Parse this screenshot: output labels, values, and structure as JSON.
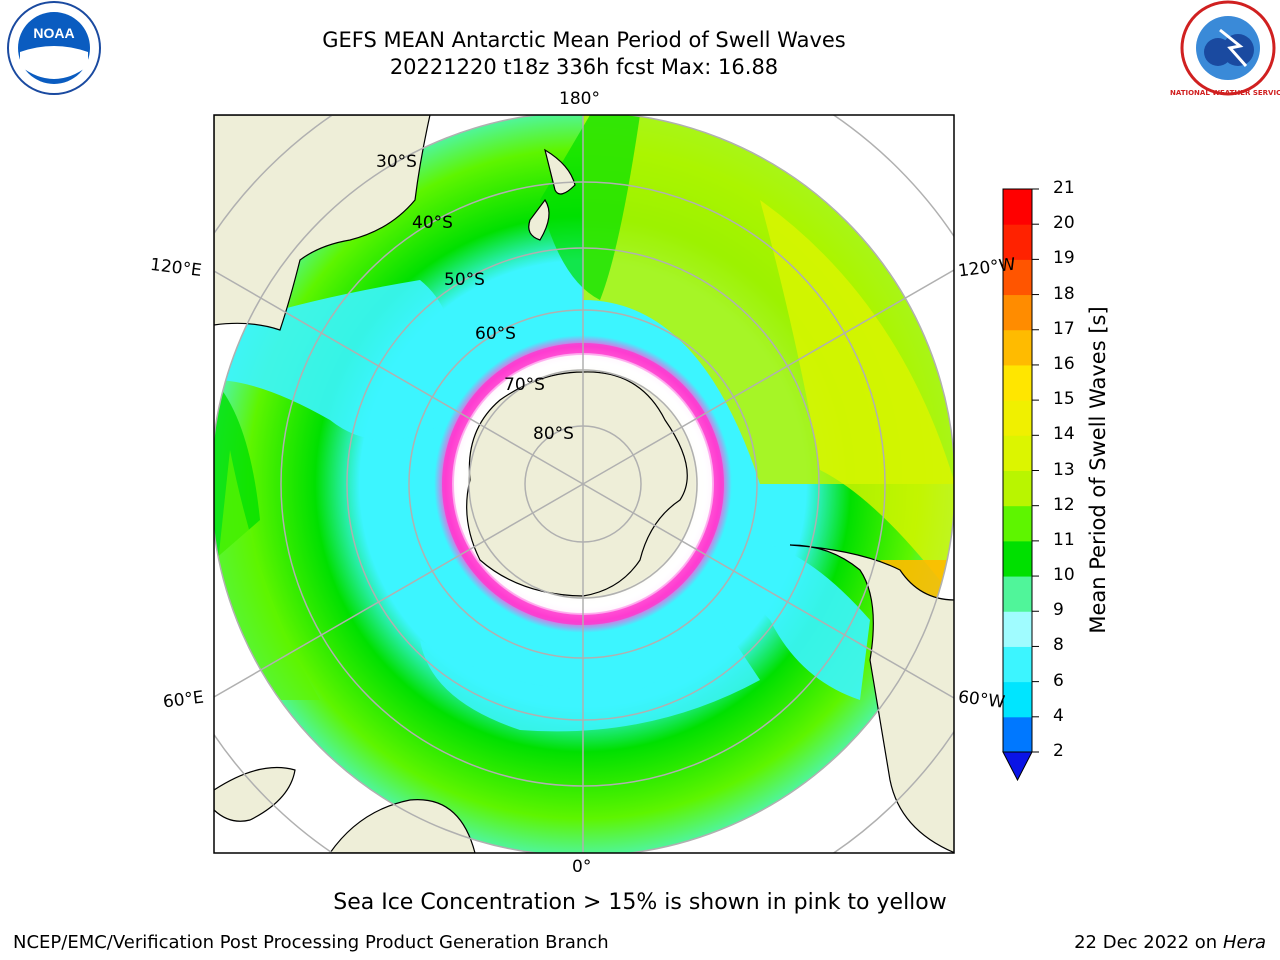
{
  "header": {
    "title_line1": "GEFS MEAN Antarctic Mean Period of Swell Waves",
    "title_line2": "20221220 t18z 336h fcst   Max: 16.88"
  },
  "logos": {
    "left_text": "NOAA",
    "right_ring_text": "NATIONAL WEATHER SERVICE"
  },
  "map": {
    "longitude_labels": {
      "top": "180°",
      "bottom": "0°",
      "upper_left": "120°E",
      "upper_right": "120°W",
      "lower_left": "60°E",
      "lower_right": "60°W"
    },
    "latitude_labels": [
      "30°S",
      "40°S",
      "50°S",
      "60°S",
      "70°S",
      "80°S"
    ]
  },
  "colorbar": {
    "label": "Mean Period of Swell Waves [s]",
    "ticks": [
      "2",
      "4",
      "6",
      "8",
      "9",
      "10",
      "11",
      "12",
      "13",
      "14",
      "15",
      "16",
      "17",
      "18",
      "19",
      "20",
      "21"
    ],
    "colors": [
      "#0a14e6",
      "#0078ff",
      "#00e5ff",
      "#3cf5ff",
      "#a0fcff",
      "#50f59a",
      "#00e000",
      "#5ef500",
      "#b9f500",
      "#dcf500",
      "#f0f000",
      "#ffe600",
      "#ffbb00",
      "#ff8c00",
      "#ff5500",
      "#ff2200",
      "#ff0000"
    ]
  },
  "footer": {
    "sea_ice_note": "Sea Ice Concentration > 15% is shown in pink to yellow",
    "credit": "NCEP/EMC/Verification Post Processing Product Generation Branch",
    "date": "22 Dec 2022 on",
    "host": "Hera"
  }
}
